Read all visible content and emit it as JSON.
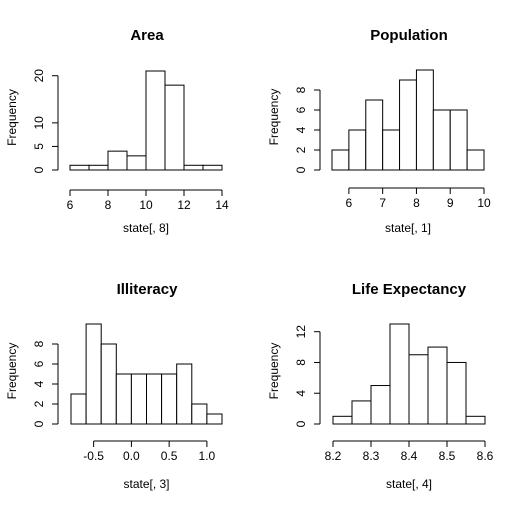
{
  "chart_data": [
    {
      "type": "bar",
      "subtype": "histogram",
      "title": "Area",
      "xlabel": "state[, 8]",
      "ylabel": "Frequency",
      "xlim": [
        6,
        14
      ],
      "ylim": [
        0,
        21
      ],
      "x_ticks": [
        "6",
        "8",
        "10",
        "12",
        "14"
      ],
      "y_ticks": [
        "0",
        "5",
        "10",
        "20"
      ],
      "bin_edges": [
        6,
        7,
        8,
        9,
        10,
        11,
        12,
        13,
        14
      ],
      "values": [
        1,
        1,
        4,
        3,
        21,
        18,
        1,
        1
      ]
    },
    {
      "type": "bar",
      "subtype": "histogram",
      "title": "Population",
      "xlabel": "state[, 1]",
      "ylabel": "Frequency",
      "xlim": [
        5.5,
        10
      ],
      "ylim": [
        0,
        10
      ],
      "x_ticks": [
        "6",
        "7",
        "8",
        "9",
        "10"
      ],
      "y_ticks": [
        "0",
        "2",
        "4",
        "6",
        "8"
      ],
      "bin_edges": [
        5.5,
        6,
        6.5,
        7,
        7.5,
        8,
        8.5,
        9,
        9.5,
        10
      ],
      "values": [
        2,
        4,
        7,
        4,
        9,
        10,
        6,
        6,
        2
      ]
    },
    {
      "type": "bar",
      "subtype": "histogram",
      "title": "Illiteracy",
      "xlabel": "state[, 3]",
      "ylabel": "Frequency",
      "xlim": [
        -0.8,
        1.2
      ],
      "ylim": [
        0,
        10
      ],
      "x_ticks": [
        "-0.5",
        "0.0",
        "0.5",
        "1.0"
      ],
      "y_ticks": [
        "0",
        "2",
        "4",
        "6",
        "8"
      ],
      "bin_edges": [
        -0.8,
        -0.6,
        -0.4,
        -0.2,
        0.0,
        0.2,
        0.4,
        0.6,
        0.8,
        1.0,
        1.2
      ],
      "values": [
        3,
        10,
        8,
        5,
        5,
        5,
        5,
        6,
        2,
        1
      ]
    },
    {
      "type": "bar",
      "subtype": "histogram",
      "title": "Life Expectancy",
      "xlabel": "state[, 4]",
      "ylabel": "Frequency",
      "xlim": [
        8.2,
        8.6
      ],
      "ylim": [
        0,
        13
      ],
      "x_ticks": [
        "8.2",
        "8.3",
        "8.4",
        "8.5",
        "8.6"
      ],
      "y_ticks": [
        "0",
        "4",
        "8",
        "12"
      ],
      "bin_edges": [
        8.2,
        8.25,
        8.3,
        8.35,
        8.4,
        8.45,
        8.5,
        8.55,
        8.6
      ],
      "values": [
        1,
        3,
        5,
        13,
        9,
        10,
        8,
        1
      ]
    }
  ]
}
